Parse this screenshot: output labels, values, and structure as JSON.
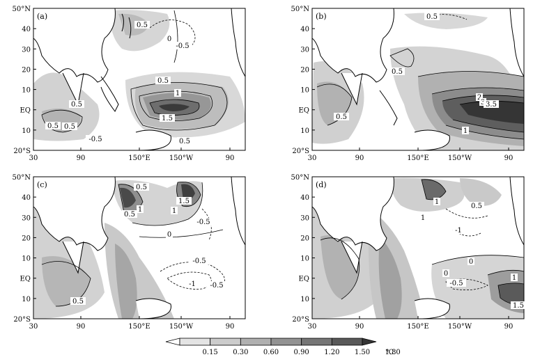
{
  "panels": [
    {
      "label": "(a)",
      "contour_labels": [
        "0.5",
        "0",
        "-0.5",
        "0.5",
        "1",
        "1.5",
        "0.5",
        "0.5",
        "0.5",
        "0.5",
        "-0.5"
      ]
    },
    {
      "label": "(b)",
      "contour_labels": [
        "0.5",
        "0.5",
        "2",
        "3",
        "3.5",
        "1",
        "0.5"
      ]
    },
    {
      "label": "(c)",
      "contour_labels": [
        "0.5",
        "0.5",
        "1",
        "1",
        "1.5",
        "0",
        "-0.5",
        "-0.5",
        "-1",
        "-0.5",
        "0.5"
      ]
    },
    {
      "label": "(d)",
      "contour_labels": [
        "1",
        "0.5",
        "1",
        "-1",
        "0",
        "0",
        "-0.5",
        "1",
        "1.5"
      ]
    }
  ],
  "axes": {
    "y_ticks": [
      "50°N",
      "40",
      "30",
      "20",
      "10",
      "EQ",
      "10",
      "20°S"
    ],
    "x_ticks": [
      "30",
      "90",
      "150°E",
      "150°W",
      "90"
    ]
  },
  "colorbar": {
    "ticks": [
      "0.15",
      "0.30",
      "0.60",
      "0.90",
      "1.20",
      "1.50",
      "1.80"
    ],
    "unit": "℃",
    "colors": [
      "#ffffff",
      "#e4e4e4",
      "#cccccc",
      "#b0b0b0",
      "#939393",
      "#767676",
      "#595959",
      "#353535"
    ]
  },
  "colors": {
    "frame": "#000000",
    "coast": "#000000"
  }
}
